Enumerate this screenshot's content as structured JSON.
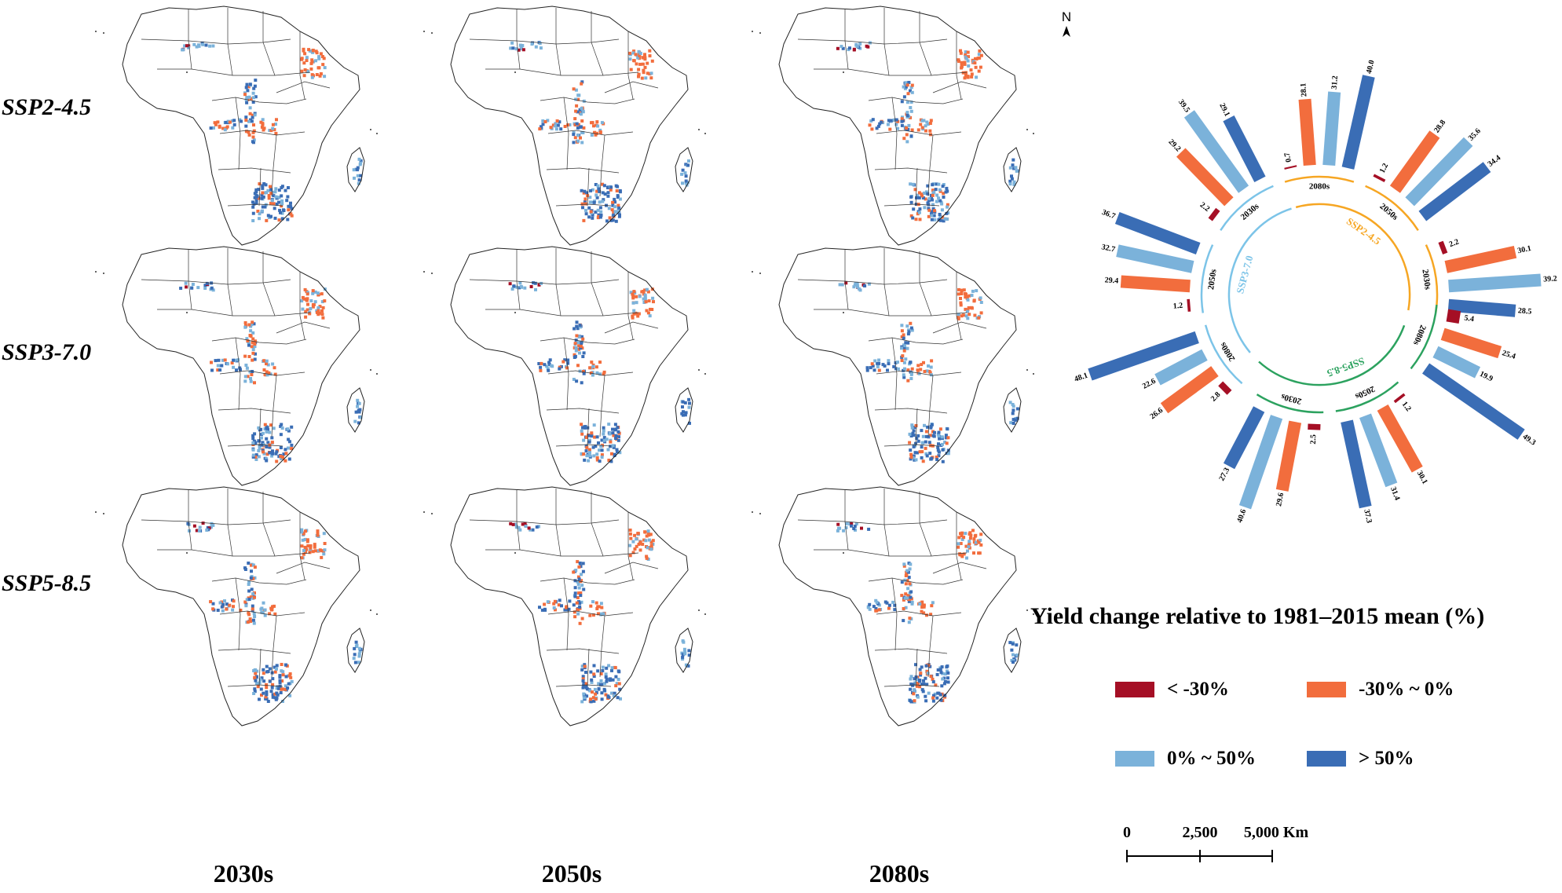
{
  "rows": [
    "SSP2-4.5",
    "SSP3-7.0",
    "SSP5-8.5"
  ],
  "columns": [
    "2030s",
    "2050s",
    "2080s"
  ],
  "north_label": "N",
  "legend": {
    "title": "Yield change relative to 1981–2015 mean (%)",
    "items": [
      {
        "label": "< -30%",
        "color": "#a50f25"
      },
      {
        "label": "-30% ~ 0%",
        "color": "#f26d3d"
      },
      {
        "label": "0% ~ 50%",
        "color": "#7bb2da"
      },
      {
        "label": "> 50%",
        "color": "#3a6db5"
      }
    ]
  },
  "scale_bar": {
    "ticks": [
      "0",
      "2,500",
      "5,000 Km"
    ]
  },
  "colors": {
    "ssp245": "#f6a623",
    "ssp370": "#7cc4e8",
    "ssp585": "#2ca25f",
    "neg_strong": "#a50f25",
    "neg": "#f26d3d",
    "pos": "#7bb2da",
    "pos_strong": "#3a6db5"
  },
  "chart_data": {
    "type": "radial-bar",
    "category_order": [
      "< -30%",
      "-30% ~ 0%",
      "0% ~ 50%",
      "> 50%"
    ],
    "groups": [
      {
        "scenario": "SSP2-4.5",
        "period": "2030s",
        "values": [
          2.2,
          30.1,
          39.2,
          28.5
        ]
      },
      {
        "scenario": "SSP2-4.5",
        "period": "2050s",
        "values": [
          1.2,
          28.8,
          35.6,
          34.4
        ]
      },
      {
        "scenario": "SSP2-4.5",
        "period": "2080s",
        "values": [
          0.7,
          28.1,
          31.2,
          40.0
        ]
      },
      {
        "scenario": "SSP3-7.0",
        "period": "2030s",
        "values": [
          2.2,
          29.2,
          39.5,
          29.1
        ]
      },
      {
        "scenario": "SSP3-7.0",
        "period": "2050s",
        "values": [
          1.2,
          29.4,
          32.7,
          36.7
        ]
      },
      {
        "scenario": "SSP3-7.0",
        "period": "2080s",
        "values": [
          2.8,
          26.6,
          22.6,
          48.1
        ]
      },
      {
        "scenario": "SSP5-8.5",
        "period": "2030s",
        "values": [
          2.5,
          29.6,
          40.6,
          27.3
        ]
      },
      {
        "scenario": "SSP5-8.5",
        "period": "2050s",
        "values": [
          1.2,
          30.1,
          31.4,
          37.3
        ]
      },
      {
        "scenario": "SSP5-8.5",
        "period": "2080s",
        "values": [
          5.4,
          25.4,
          19.9,
          49.3
        ]
      }
    ]
  }
}
